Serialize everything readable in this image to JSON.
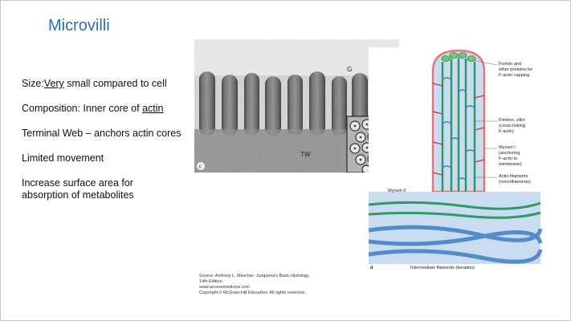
{
  "slide": {
    "title": "Microvilli",
    "bullets": {
      "size_prefix": "Size:",
      "size_underlined": "Very",
      "size_rest": " small compared to cell",
      "composition_prefix": "Composition: Inner core of ",
      "composition_underlined": "actin",
      "terminal_web": "Terminal Web – anchors actin cores",
      "movement": "Limited movement",
      "surface_area": "Increase surface area for absorption of metabolites"
    }
  },
  "micrograph": {
    "label_g": "G",
    "label_tw": "TW",
    "panel_letter": "c"
  },
  "diagram": {
    "panel_letter": "d",
    "labels": {
      "formin": "Formin and other proteins for F-actin capping",
      "fimbrin": "Fimbrin, villin (cross-linking F-actin)",
      "myosin1": "Myosin I (anchoring F-actin to membrane)",
      "actin": "Actin filaments (microfilaments)",
      "myosin2": "Myosin II",
      "intermediate": "Intermediate filaments (keratins)"
    }
  },
  "source": {
    "line1": "Source: Anthony L. Mescher: Junqueira's Basic Histology,",
    "line2": "14th Edition.",
    "line3": "www.accessmedicine.com",
    "line4": "Copyright © McGraw-Hill Education. All rights reserved."
  },
  "colors": {
    "title": "#2d6db5",
    "actin_green": "#2e9a6a",
    "fimbrin_blue": "#3f7fc4",
    "myosin_red": "#c0392b",
    "membrane_pink": "#e07a7a",
    "cytoplasm_blue": "#c9dcf0"
  }
}
